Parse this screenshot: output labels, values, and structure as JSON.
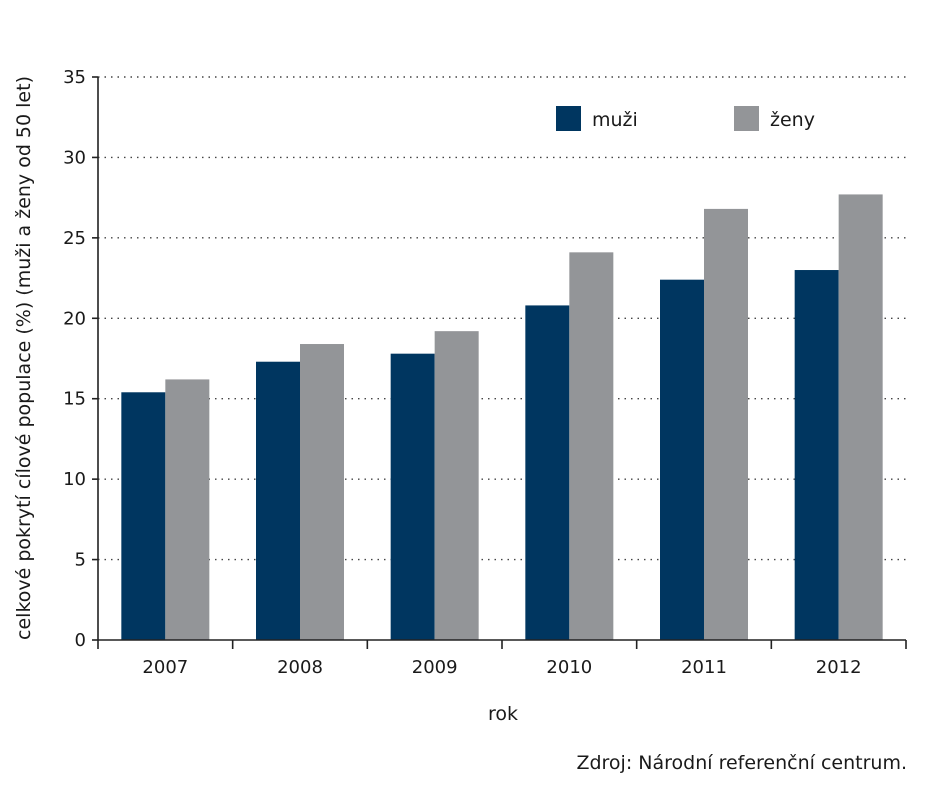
{
  "chart_data": {
    "type": "bar",
    "categories": [
      "2007",
      "2008",
      "2009",
      "2010",
      "2011",
      "2012"
    ],
    "series": [
      {
        "name": "muži",
        "color": "#003660",
        "values": [
          15.4,
          17.3,
          17.8,
          20.8,
          22.4,
          23.0
        ]
      },
      {
        "name": "ženy",
        "color": "#939598",
        "values": [
          16.2,
          18.4,
          19.2,
          24.1,
          26.8,
          27.7
        ]
      }
    ],
    "xlabel": "rok",
    "ylabel": "celkové pokrytí cílové populace (%) (muži a ženy od 50 let)",
    "ylim": [
      0,
      35
    ],
    "yticks": [
      0,
      5,
      10,
      15,
      20,
      25,
      30,
      35
    ],
    "grid": true,
    "legend": "top-right"
  },
  "source": "Zdroj: Národní referenční centrum."
}
